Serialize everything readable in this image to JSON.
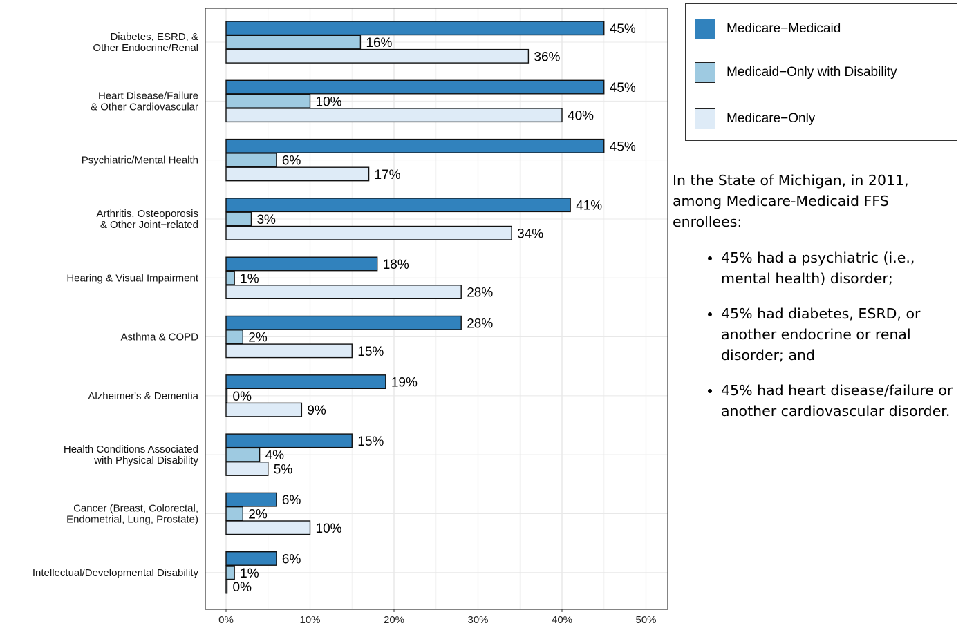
{
  "chart_data": {
    "type": "bar",
    "orientation": "horizontal",
    "categories": [
      [
        "Diabetes, ESRD, &",
        "Other Endocrine/Renal"
      ],
      [
        "Heart Disease/Failure",
        "& Other Cardiovascular"
      ],
      [
        "Psychiatric/Mental Health"
      ],
      [
        "Arthritis, Osteoporosis",
        "& Other Joint−related"
      ],
      [
        "Hearing & Visual Impairment"
      ],
      [
        "Asthma & COPD"
      ],
      [
        "Alzheimer's & Dementia"
      ],
      [
        "Health Conditions Associated",
        "with Physical Disability"
      ],
      [
        "Cancer (Breast, Colorectal,",
        "Endometrial, Lung, Prostate)"
      ],
      [
        "Intellectual/Developmental Disability"
      ]
    ],
    "series": [
      {
        "name": "Medicare−Medicaid",
        "color": "#3182bd",
        "values": [
          45,
          45,
          45,
          41,
          18,
          28,
          19,
          15,
          6,
          6
        ],
        "labels": [
          "45%",
          "45%",
          "45%",
          "41%",
          "18%",
          "28%",
          "19%",
          "15%",
          "6%",
          "6%"
        ]
      },
      {
        "name": "Medicaid−Only with Disability",
        "color": "#9ecae1",
        "values": [
          16,
          10,
          6,
          3,
          1,
          2,
          0,
          4,
          2,
          1
        ],
        "labels": [
          "16%",
          "10%",
          "6%",
          "3%",
          "1%",
          "2%",
          "0%",
          "4%",
          "2%",
          "1%"
        ]
      },
      {
        "name": "Medicare−Only",
        "color": "#deebf7",
        "values": [
          36,
          40,
          17,
          34,
          28,
          15,
          9,
          5,
          10,
          0
        ],
        "labels": [
          "36%",
          "40%",
          "17%",
          "34%",
          "28%",
          "15%",
          "9%",
          "5%",
          "10%",
          "0%"
        ]
      }
    ],
    "xlim": [
      0,
      52
    ],
    "xticks": [
      0,
      10,
      20,
      30,
      40,
      50
    ],
    "xtick_labels": [
      "0%",
      "10%",
      "20%",
      "30%",
      "40%",
      "50%"
    ],
    "grid": true,
    "legend_position": "right"
  },
  "note": {
    "intro": "In the State of Michigan, in 2011, among Medicare-Medicaid FFS enrollees:",
    "bullets": [
      "45% had a psychiatric (i.e., mental health) disorder;",
      "45% had diabetes, ESRD, or another endocrine or renal disorder; and",
      "45% had heart disease/failure or another cardiovascular disorder."
    ]
  }
}
